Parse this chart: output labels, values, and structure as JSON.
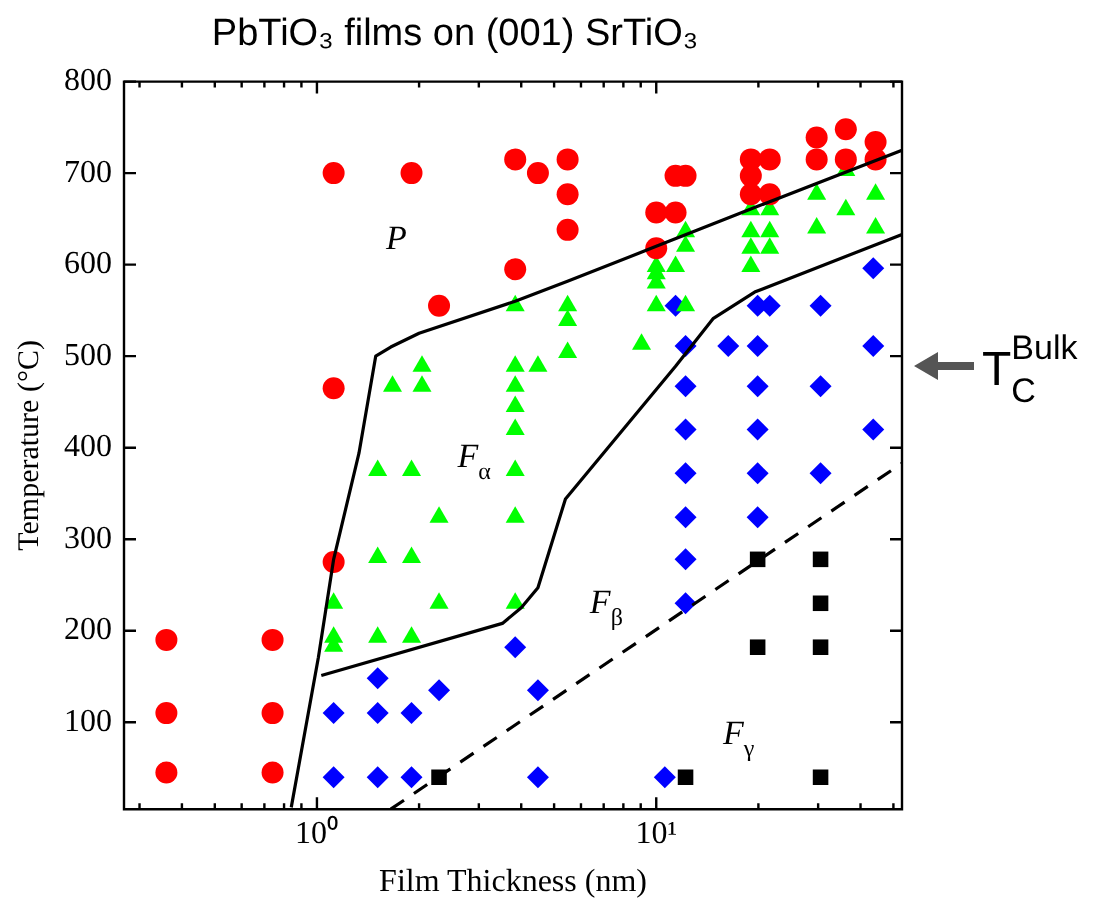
{
  "chart_data": {
    "type": "scatter",
    "title": "PbTiO₃ films on (001) SrTiO₃",
    "xlabel": "Film Thickness (nm)",
    "ylabel": "Temperature (°C)",
    "log": "x",
    "xlim": [
      0.27,
      53
    ],
    "ylim": [
      5,
      800
    ],
    "xticks": [
      {
        "value": 0.3,
        "label": null
      },
      {
        "value": 0.4,
        "label": null
      },
      {
        "value": 0.5,
        "label": null
      },
      {
        "value": 0.6,
        "label": null
      },
      {
        "value": 0.7,
        "label": null
      },
      {
        "value": 0.8,
        "label": null
      },
      {
        "value": 0.9,
        "label": null
      },
      {
        "value": 1,
        "label": "10⁰"
      },
      {
        "value": 2,
        "label": null
      },
      {
        "value": 3,
        "label": null
      },
      {
        "value": 4,
        "label": null
      },
      {
        "value": 5,
        "label": null
      },
      {
        "value": 6,
        "label": null
      },
      {
        "value": 7,
        "label": null
      },
      {
        "value": 8,
        "label": null
      },
      {
        "value": 9,
        "label": null
      },
      {
        "value": 10,
        "label": "10¹"
      },
      {
        "value": 20,
        "label": null
      },
      {
        "value": 30,
        "label": null
      },
      {
        "value": 40,
        "label": null
      },
      {
        "value": 50,
        "label": null
      }
    ],
    "yticks": [
      100,
      200,
      300,
      400,
      500,
      600,
      700,
      800
    ],
    "grid": false,
    "legend": false,
    "series": [
      {
        "marker": "circle",
        "color": "#ff0000",
        "x": [
          1.12,
          1.9,
          3.84,
          4.48,
          3.84,
          2.29,
          1.12,
          1.12,
          0.36,
          0.74,
          0.36,
          0.74,
          0.36,
          0.74,
          5.48,
          5.48,
          5.48,
          10,
          11.4,
          10,
          11.4,
          12.2,
          19,
          21.6,
          19,
          19,
          21.6,
          29.7,
          29.7,
          36.2,
          36.2,
          44.3,
          44.3
        ],
        "values": [
          700,
          700,
          715,
          700,
          595,
          555,
          465,
          275,
          190,
          190,
          110,
          110,
          45,
          45,
          715,
          677,
          638,
          657,
          657,
          618,
          697,
          697,
          715,
          715,
          697,
          677,
          677,
          739,
          715,
          748,
          715,
          734,
          715
        ]
      },
      {
        "marker": "triangle",
        "color": "#00ff00",
        "x": [
          1.67,
          2.04,
          2.04,
          3.84,
          4.48,
          3.84,
          3.84,
          3.84,
          3.84,
          1.51,
          1.9,
          2.29,
          3.84,
          3.84,
          1.51,
          1.9,
          1.12,
          2.29,
          3.84,
          1.12,
          1.12,
          1.51,
          1.9,
          5.48,
          5.48,
          5.48,
          9.05,
          10,
          10,
          10,
          10,
          11.4,
          12.2,
          12.2,
          12.2,
          19,
          21.6,
          19,
          21.6,
          19,
          21.6,
          19,
          29.7,
          29.7,
          36.2,
          36.2,
          44.3,
          44.3
        ],
        "values": [
          467,
          467,
          489,
          489,
          489,
          467,
          445,
          420,
          555,
          375,
          375,
          324,
          375,
          324,
          280,
          280,
          230,
          230,
          230,
          193,
          183,
          193,
          193,
          555,
          539,
          504,
          513,
          598,
          590,
          580,
          555,
          598,
          636,
          620,
          555,
          660,
          660,
          636,
          636,
          618,
          618,
          598,
          677,
          640,
          703,
          660,
          677,
          640
        ]
      },
      {
        "marker": "diamond",
        "color": "#0000ff",
        "x": [
          1.12,
          1.51,
          1.51,
          1.9,
          2.29,
          3.84,
          4.48,
          1.12,
          1.51,
          1.9,
          4.48,
          10.6,
          12.2,
          12.2,
          12.2,
          12.2,
          19.9,
          19.9,
          30.5,
          11.4,
          12.2,
          12.2,
          12.2,
          16.3,
          19.9,
          21.6,
          19.9,
          19.9,
          19.9,
          30.5,
          30.5,
          43.6,
          43.6,
          43.6
        ],
        "values": [
          110,
          148,
          110,
          110,
          135,
          182,
          135,
          40,
          40,
          40,
          40,
          40,
          372,
          324,
          278,
          230,
          372,
          324,
          372,
          555,
          511,
          467,
          420,
          511,
          555,
          555,
          511,
          467,
          420,
          555,
          467,
          596,
          511,
          420
        ]
      },
      {
        "marker": "square",
        "color": "#000000",
        "x": [
          2.29,
          12.2,
          19.9,
          30.5,
          30.5,
          19.9,
          30.5,
          30.5
        ],
        "values": [
          40,
          40,
          278,
          278,
          230,
          182,
          182,
          40
        ]
      },
      {
        "type": "line",
        "marker": "none",
        "line_style": "solid",
        "color": "#000000",
        "x": [
          0.84,
          1.01,
          1.12,
          1.33,
          1.49,
          1.65,
          2,
          3.84,
          5.5,
          10,
          20,
          53
        ],
        "values": [
          7,
          171,
          278,
          394,
          500,
          510,
          525,
          560,
          582,
          620,
          664,
          725
        ]
      },
      {
        "type": "line",
        "marker": "none",
        "line_style": "solid",
        "color": "#000000",
        "x": [
          1.03,
          3.52,
          4,
          4.48,
          5.4,
          11.4,
          14.7,
          19.5,
          53
        ],
        "values": [
          151,
          208,
          225,
          247,
          344,
          489,
          541,
          570,
          633
        ]
      },
      {
        "type": "line",
        "marker": "none",
        "line_style": "dashed",
        "color": "#000000",
        "x": [
          1.65,
          53
        ],
        "values": [
          5,
          383
        ]
      }
    ],
    "annotations": [
      "P",
      "F$_{α}$",
      "F$_{β}$",
      "F$_{γ}$",
      "T$_{C}$$^{Bulk}$"
    ]
  }
}
